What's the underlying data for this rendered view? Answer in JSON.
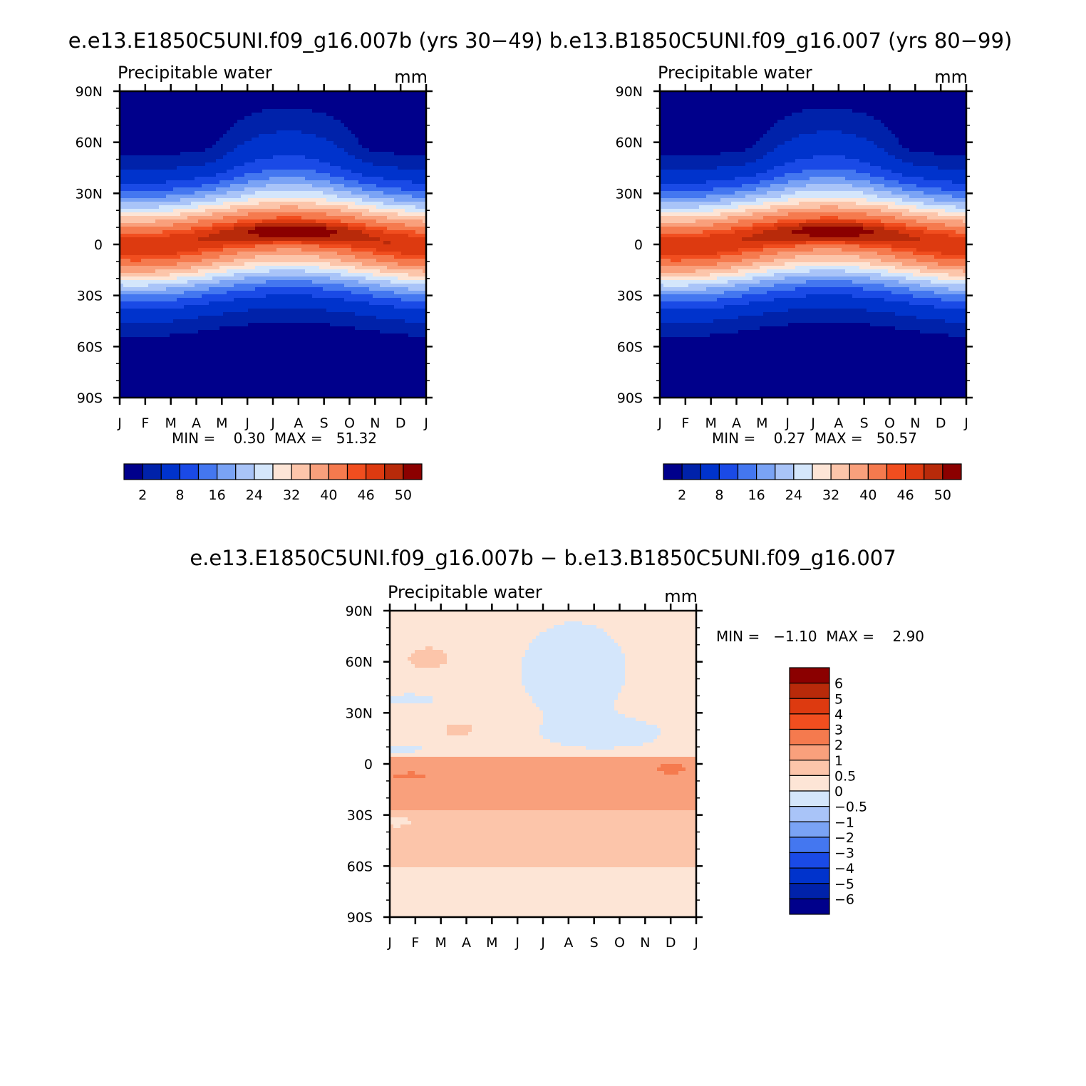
{
  "page": {
    "top_title": "e.e13.E1850C5UNI.f09_g16.007b (yrs 30−49) b.e13.B1850C5UNI.f09_g16.007 (yrs 80−99)",
    "bottom_title": "e.e13.E1850C5UNI.f09_g16.007b − b.e13.B1850C5UNI.f09_g16.007"
  },
  "chart_data": [
    {
      "id": "panel-a",
      "type": "heatmap",
      "variable": "Precipitable water",
      "units": "mm",
      "y_ticks": [
        "90N",
        "60N",
        "30N",
        "0",
        "30S",
        "60S",
        "90S"
      ],
      "x_ticks": [
        "J",
        "F",
        "M",
        "A",
        "M",
        "J",
        "J",
        "A",
        "S",
        "O",
        "N",
        "D",
        "J"
      ],
      "stats_text": "MIN =    0.30  MAX =   51.32",
      "min": 0.3,
      "max": 51.32,
      "levels": [
        2,
        4,
        8,
        12,
        16,
        20,
        24,
        28,
        32,
        36,
        40,
        44,
        46,
        48,
        50
      ],
      "colorbar_labels": [
        "2",
        "8",
        "16",
        "24",
        "32",
        "40",
        "46",
        "50"
      ],
      "colors": [
        "#00008b",
        "#0022aa",
        "#0033cc",
        "#1a4ae6",
        "#4477f0",
        "#7aa3f5",
        "#a9c4f8",
        "#d4e6fb",
        "#fde5d6",
        "#fcc5aa",
        "#f9a07c",
        "#f57a4e",
        "#f14e1f",
        "#dd3a10",
        "#b82a0a",
        "#8b0000"
      ],
      "peak_value": 51.32,
      "peak_month": 6.8,
      "peak_lat": 8
    },
    {
      "id": "panel-b",
      "type": "heatmap",
      "variable": "Precipitable water",
      "units": "mm",
      "y_ticks": [
        "90N",
        "60N",
        "30N",
        "0",
        "30S",
        "60S",
        "90S"
      ],
      "x_ticks": [
        "J",
        "F",
        "M",
        "A",
        "M",
        "J",
        "J",
        "A",
        "S",
        "O",
        "N",
        "D",
        "J"
      ],
      "stats_text": "MIN =    0.27  MAX =   50.57",
      "min": 0.27,
      "max": 50.57,
      "levels": [
        2,
        4,
        8,
        12,
        16,
        20,
        24,
        28,
        32,
        36,
        40,
        44,
        46,
        48,
        50
      ],
      "colorbar_labels": [
        "2",
        "8",
        "16",
        "24",
        "32",
        "40",
        "46",
        "50"
      ],
      "colors": [
        "#00008b",
        "#0022aa",
        "#0033cc",
        "#1a4ae6",
        "#4477f0",
        "#7aa3f5",
        "#a9c4f8",
        "#d4e6fb",
        "#fde5d6",
        "#fcc5aa",
        "#f9a07c",
        "#f57a4e",
        "#f14e1f",
        "#dd3a10",
        "#b82a0a",
        "#8b0000"
      ],
      "peak_value": 50.57,
      "peak_month": 6.8,
      "peak_lat": 8
    },
    {
      "id": "panel-diff",
      "type": "heatmap",
      "variable": "Precipitable water",
      "units": "mm",
      "y_ticks": [
        "90N",
        "60N",
        "30N",
        "0",
        "30S",
        "60S",
        "90S"
      ],
      "x_ticks": [
        "J",
        "F",
        "M",
        "A",
        "M",
        "J",
        "J",
        "A",
        "S",
        "O",
        "N",
        "D",
        "J"
      ],
      "stats_text": "MIN =   −1.10  MAX =    2.90",
      "min": -1.1,
      "max": 2.9,
      "levels": [
        -6,
        -5,
        -4,
        -3,
        -2,
        -1,
        -0.5,
        0,
        0.5,
        1,
        2,
        3,
        4,
        5,
        6
      ],
      "colorbar_labels": [
        "6",
        "5",
        "4",
        "3",
        "2",
        "1",
        "0.5",
        "0",
        "−0.5",
        "−1",
        "−2",
        "−3",
        "−4",
        "−5",
        "−6"
      ],
      "colors": [
        "#00008b",
        "#0022aa",
        "#0033cc",
        "#1a4ae6",
        "#4477f0",
        "#7aa3f5",
        "#a9c4f8",
        "#d4e6fb",
        "#fde5d6",
        "#fcc5aa",
        "#f9a07c",
        "#f57a4e",
        "#f14e1f",
        "#dd3a10",
        "#b82a0a",
        "#8b0000"
      ]
    }
  ]
}
